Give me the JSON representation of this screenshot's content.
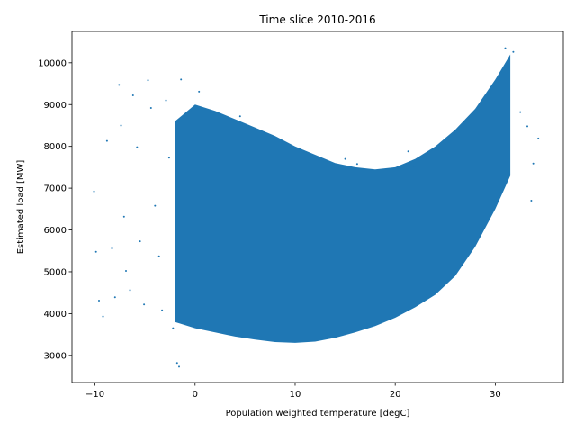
{
  "chart_data": {
    "type": "scatter",
    "title": "Time slice 2010-2016",
    "xlabel": "Population weighted temperature [degC]",
    "ylabel": "Estimated load [MW]",
    "xlim": [
      -12.3,
      36.8
    ],
    "ylim": [
      2350,
      10750
    ],
    "xticks": [
      {
        "value": -10,
        "label": "−10"
      },
      {
        "value": 0,
        "label": "0"
      },
      {
        "value": 10,
        "label": "10"
      },
      {
        "value": 20,
        "label": "20"
      },
      {
        "value": 30,
        "label": "30"
      }
    ],
    "yticks": [
      {
        "value": 3000,
        "label": "3000"
      },
      {
        "value": 4000,
        "label": "4000"
      },
      {
        "value": 5000,
        "label": "5000"
      },
      {
        "value": 6000,
        "label": "6000"
      },
      {
        "value": 7000,
        "label": "7000"
      },
      {
        "value": 8000,
        "label": "8000"
      },
      {
        "value": 9000,
        "label": "9000"
      },
      {
        "value": 10000,
        "label": "10000"
      }
    ],
    "grid": false,
    "legend": "none",
    "series": [
      {
        "color": "#1f77b4",
        "dense_region": {
          "temperature": [
            -2,
            0,
            2,
            4,
            6,
            8,
            10,
            12,
            14,
            16,
            18,
            20,
            22,
            24,
            26,
            28,
            30,
            31.5
          ],
          "load_lower": [
            3800,
            3650,
            3550,
            3450,
            3380,
            3320,
            3300,
            3330,
            3420,
            3550,
            3700,
            3900,
            4150,
            4450,
            4900,
            5600,
            6500,
            7300
          ],
          "load_upper": [
            8600,
            9000,
            8850,
            8650,
            8450,
            8250,
            8000,
            7800,
            7600,
            7500,
            7450,
            7500,
            7700,
            8000,
            8400,
            8900,
            9600,
            10200
          ]
        },
        "sample_points": [
          {
            "x": -10.1,
            "y": 6920
          },
          {
            "x": -9.9,
            "y": 5480
          },
          {
            "x": -9.6,
            "y": 4310
          },
          {
            "x": -9.2,
            "y": 3930
          },
          {
            "x": -8.8,
            "y": 8130
          },
          {
            "x": -8.3,
            "y": 5560
          },
          {
            "x": -8.0,
            "y": 4390
          },
          {
            "x": -7.6,
            "y": 9470
          },
          {
            "x": -7.4,
            "y": 8500
          },
          {
            "x": -7.1,
            "y": 6320
          },
          {
            "x": -6.9,
            "y": 5020
          },
          {
            "x": -6.5,
            "y": 4560
          },
          {
            "x": -6.2,
            "y": 9220
          },
          {
            "x": -5.8,
            "y": 7980
          },
          {
            "x": -5.5,
            "y": 5730
          },
          {
            "x": -5.1,
            "y": 4220
          },
          {
            "x": -4.7,
            "y": 9580
          },
          {
            "x": -4.4,
            "y": 8920
          },
          {
            "x": -4.0,
            "y": 6580
          },
          {
            "x": -3.6,
            "y": 5370
          },
          {
            "x": -3.3,
            "y": 4080
          },
          {
            "x": -2.9,
            "y": 9100
          },
          {
            "x": -2.6,
            "y": 7730
          },
          {
            "x": -2.2,
            "y": 3650
          },
          {
            "x": -1.8,
            "y": 2820
          },
          {
            "x": -1.6,
            "y": 2730
          },
          {
            "x": -1.4,
            "y": 9600
          },
          {
            "x": 0.4,
            "y": 9310
          },
          {
            "x": 4.5,
            "y": 8720
          },
          {
            "x": 15.0,
            "y": 7700
          },
          {
            "x": 16.2,
            "y": 7580
          },
          {
            "x": 21.3,
            "y": 7880
          },
          {
            "x": 21.9,
            "y": 7520
          },
          {
            "x": 31.0,
            "y": 10350
          },
          {
            "x": 31.8,
            "y": 10260
          },
          {
            "x": 32.5,
            "y": 8820
          },
          {
            "x": 33.2,
            "y": 8480
          },
          {
            "x": 33.8,
            "y": 7590
          },
          {
            "x": 34.3,
            "y": 8190
          },
          {
            "x": 33.6,
            "y": 6700
          }
        ]
      }
    ]
  }
}
